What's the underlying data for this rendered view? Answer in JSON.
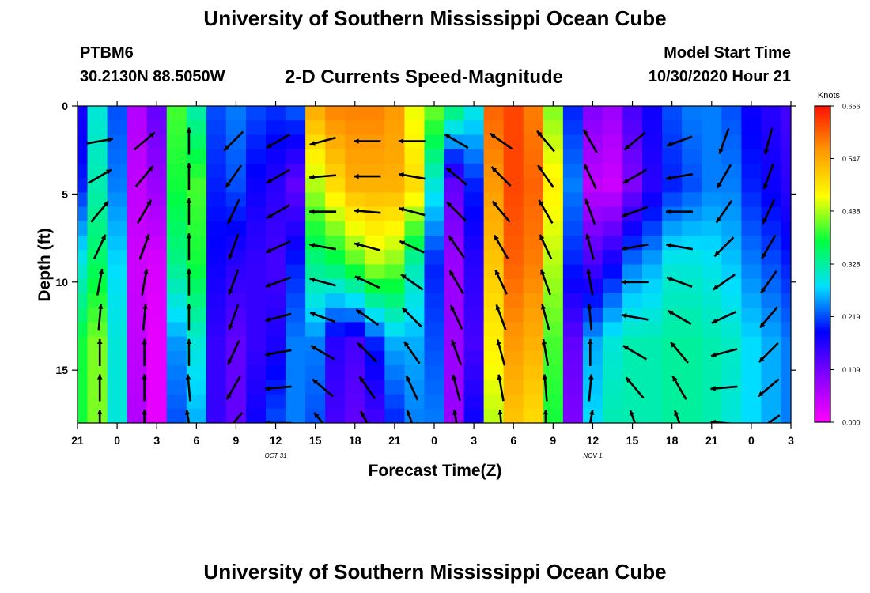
{
  "header": {
    "main_title": "University of Southern Mississippi Ocean Cube",
    "station_id": "PTBM6",
    "station_location": "30.2130N 88.5050W",
    "plot_title": "2-D Currents Speed-Magnitude",
    "model_start_label": "Model Start Time",
    "model_start_value": "10/30/2020 Hour 21"
  },
  "footer": {
    "title": "University of Southern Mississippi Ocean Cube"
  },
  "chart_data": {
    "type": "heatmap",
    "title": "2-D Currents Speed-Magnitude",
    "xlabel": "Forecast Time(Z)",
    "ylabel": "Depth (ft)",
    "x_hours": [
      0,
      3,
      6,
      9,
      12,
      15,
      18,
      21,
      24,
      27,
      30,
      33,
      36,
      39,
      42,
      45,
      48,
      51,
      54
    ],
    "x_tick_labels": [
      "21",
      "0",
      "3",
      "6",
      "9",
      "12",
      "15",
      "18",
      "21",
      "0",
      "3",
      "6",
      "9",
      "12",
      "15",
      "18",
      "21",
      "0",
      "3"
    ],
    "date_labels": [
      {
        "x_hour": 15,
        "text": "OCT 31"
      },
      {
        "x_hour": 39,
        "text": "NOV 1"
      }
    ],
    "ylim": [
      0,
      18
    ],
    "y_ticks": [
      0,
      5,
      10,
      15
    ],
    "y_tick_labels": [
      "0",
      "5",
      "10",
      "15"
    ],
    "colorbar": {
      "title": "Knots",
      "ticks": [
        0.0,
        0.109,
        0.219,
        0.328,
        0.438,
        0.547,
        0.656
      ],
      "tick_labels": [
        "0.000",
        "0.109",
        "0.219",
        "0.328",
        "0.438",
        "0.547",
        "0.656"
      ],
      "range": [
        0.0,
        0.656
      ],
      "colors": [
        "#ff00ff",
        "#8800ff",
        "#0000ff",
        "#00e0ff",
        "#00ff40",
        "#ffff00",
        "#ff9900",
        "#ff1000"
      ]
    },
    "speed_profiles_knots": {
      "hours": [
        0,
        1.5,
        3,
        4.5,
        6,
        7.5,
        9,
        10.5,
        12,
        13.5,
        15,
        16.5,
        18,
        19.5,
        21,
        22.5,
        24,
        25.5,
        27,
        28.5,
        30,
        31.5,
        33,
        34.5,
        36,
        37.5,
        39,
        40.5,
        42,
        43.5,
        45,
        46.5,
        48,
        49.5,
        51,
        52.5,
        54
      ],
      "depths_ft": [
        0,
        4.5,
        9,
        13.5,
        18
      ],
      "values": [
        [
          0.17,
          0.2,
          0.3,
          0.38,
          0.38
        ],
        [
          0.3,
          0.32,
          0.36,
          0.42,
          0.42
        ],
        [
          0.22,
          0.24,
          0.28,
          0.3,
          0.3
        ],
        [
          0.06,
          0.05,
          0.04,
          0.05,
          0.06
        ],
        [
          0.12,
          0.08,
          0.03,
          0.02,
          0.02
        ],
        [
          0.4,
          0.38,
          0.34,
          0.25,
          0.22
        ],
        [
          0.32,
          0.4,
          0.38,
          0.3,
          0.26
        ],
        [
          0.22,
          0.2,
          0.18,
          0.15,
          0.15
        ],
        [
          0.24,
          0.22,
          0.16,
          0.12,
          0.12
        ],
        [
          0.22,
          0.18,
          0.15,
          0.15,
          0.18
        ],
        [
          0.21,
          0.16,
          0.14,
          0.17,
          0.22
        ],
        [
          0.23,
          0.12,
          0.2,
          0.24,
          0.24
        ],
        [
          0.55,
          0.44,
          0.34,
          0.24,
          0.22
        ],
        [
          0.58,
          0.5,
          0.36,
          0.16,
          0.14
        ],
        [
          0.58,
          0.54,
          0.4,
          0.14,
          0.12
        ],
        [
          0.58,
          0.54,
          0.44,
          0.2,
          0.14
        ],
        [
          0.56,
          0.54,
          0.42,
          0.26,
          0.2
        ],
        [
          0.46,
          0.5,
          0.32,
          0.26,
          0.24
        ],
        [
          0.42,
          0.3,
          0.2,
          0.22,
          0.24
        ],
        [
          0.36,
          0.12,
          0.08,
          0.08,
          0.08
        ],
        [
          0.3,
          0.2,
          0.16,
          0.14,
          0.18
        ],
        [
          0.6,
          0.56,
          0.52,
          0.48,
          0.44
        ],
        [
          0.62,
          0.62,
          0.6,
          0.56,
          0.52
        ],
        [
          0.58,
          0.6,
          0.58,
          0.54,
          0.5
        ],
        [
          0.42,
          0.48,
          0.44,
          0.4,
          0.38
        ],
        [
          0.2,
          0.24,
          0.2,
          0.12,
          0.1
        ],
        [
          0.1,
          0.05,
          0.14,
          0.26,
          0.28
        ],
        [
          0.08,
          0.04,
          0.18,
          0.3,
          0.32
        ],
        [
          0.14,
          0.1,
          0.24,
          0.32,
          0.32
        ],
        [
          0.18,
          0.16,
          0.26,
          0.32,
          0.32
        ],
        [
          0.22,
          0.2,
          0.3,
          0.33,
          0.33
        ],
        [
          0.24,
          0.22,
          0.3,
          0.33,
          0.33
        ],
        [
          0.24,
          0.24,
          0.29,
          0.32,
          0.32
        ],
        [
          0.22,
          0.24,
          0.27,
          0.31,
          0.3
        ],
        [
          0.18,
          0.2,
          0.24,
          0.28,
          0.28
        ],
        [
          0.16,
          0.18,
          0.22,
          0.26,
          0.26
        ],
        [
          0.14,
          0.16,
          0.2,
          0.24,
          0.24
        ]
      ]
    },
    "vector_depths_ft": [
      2,
      4,
      6,
      8,
      10,
      12,
      14,
      16,
      18
    ],
    "vector_directions_deg": [
      [
        80,
        60,
        40,
        25,
        10,
        5,
        0,
        0,
        0
      ],
      [
        50,
        40,
        30,
        20,
        10,
        5,
        0,
        0,
        0
      ],
      [
        0,
        0,
        0,
        0,
        0,
        0,
        0,
        355,
        350
      ],
      [
        225,
        215,
        205,
        200,
        200,
        200,
        205,
        210,
        220
      ],
      [
        240,
        240,
        240,
        245,
        250,
        255,
        260,
        265,
        270
      ],
      [
        255,
        265,
        270,
        280,
        285,
        290,
        300,
        310,
        320
      ],
      [
        270,
        270,
        275,
        285,
        295,
        305,
        315,
        325,
        330
      ],
      [
        270,
        280,
        285,
        295,
        305,
        315,
        325,
        335,
        340
      ],
      [
        300,
        310,
        315,
        325,
        330,
        335,
        340,
        345,
        350
      ],
      [
        305,
        315,
        320,
        330,
        335,
        340,
        345,
        350,
        355
      ],
      [
        320,
        325,
        330,
        335,
        340,
        345,
        350,
        355,
        0
      ],
      [
        330,
        335,
        340,
        345,
        350,
        355,
        0,
        5,
        10
      ],
      [
        230,
        240,
        250,
        260,
        270,
        280,
        300,
        320,
        340
      ],
      [
        250,
        260,
        270,
        280,
        290,
        300,
        320,
        330,
        340
      ],
      [
        200,
        210,
        215,
        225,
        235,
        245,
        255,
        265,
        275
      ],
      [
        195,
        200,
        205,
        210,
        215,
        220,
        225,
        230,
        235
      ]
    ]
  }
}
